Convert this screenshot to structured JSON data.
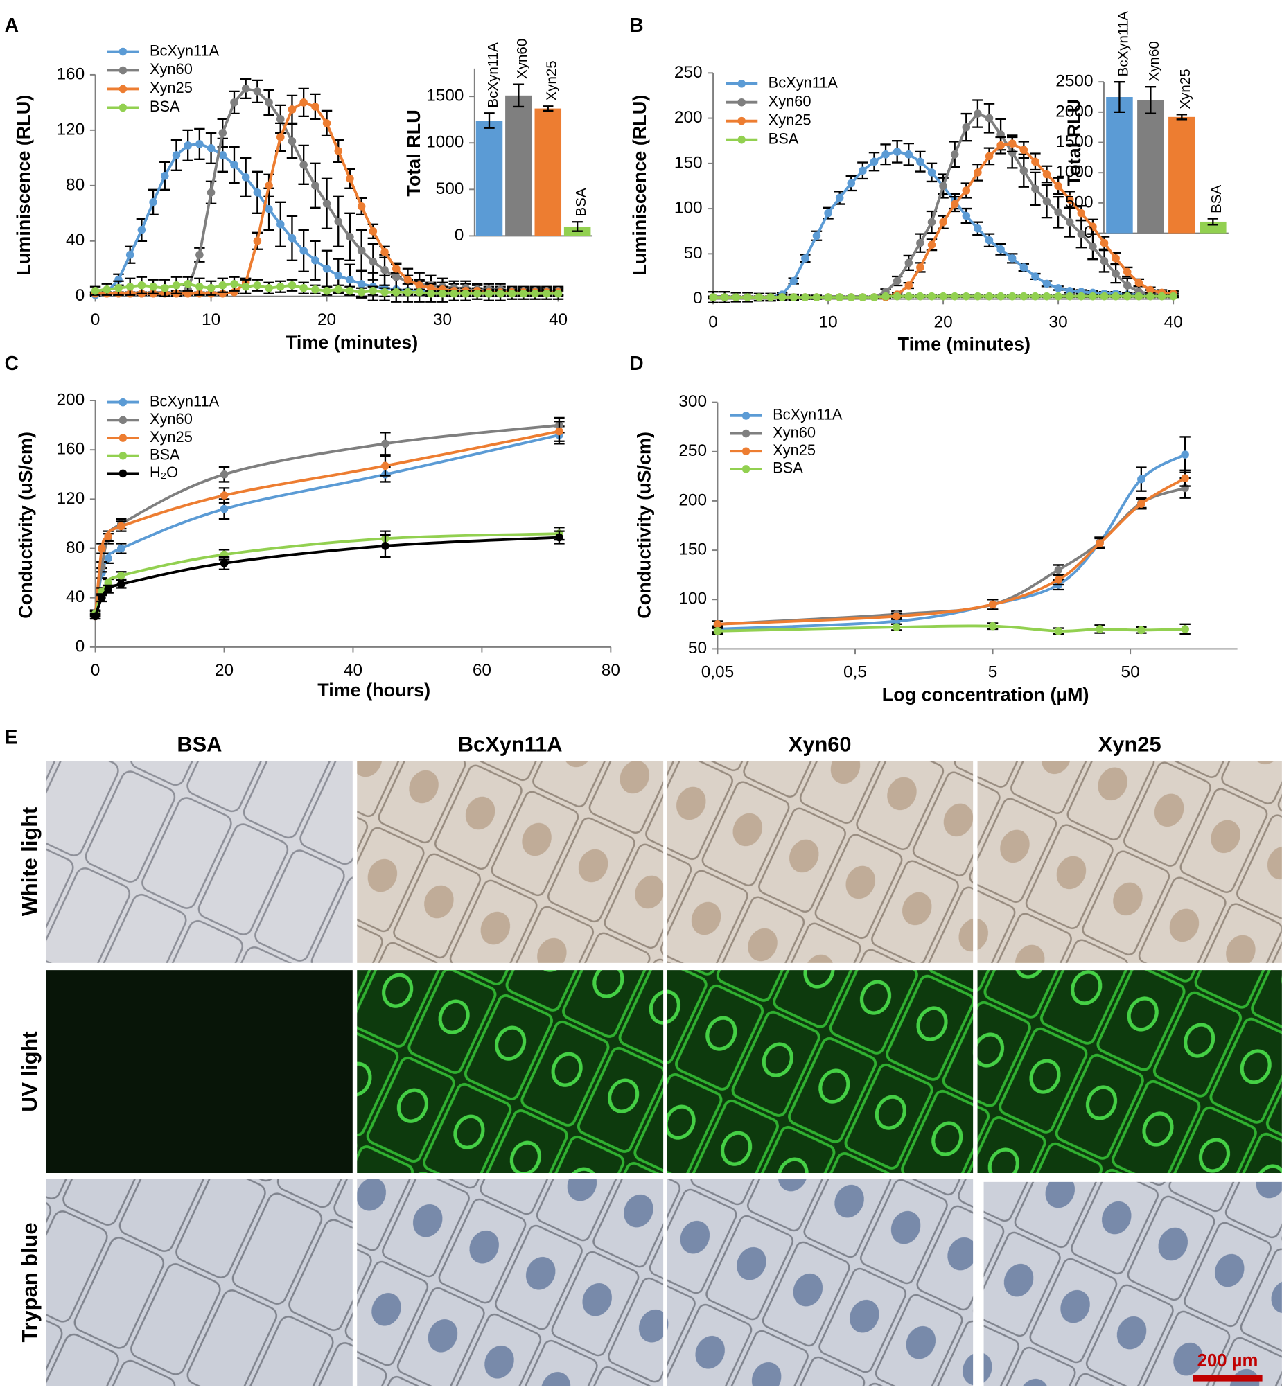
{
  "chart_data": [
    {
      "type": "line",
      "panel": "A",
      "xlabel": "Time (minutes)",
      "ylabel": "Luminiscence (RLU)",
      "x": [
        0,
        1,
        2,
        3,
        4,
        5,
        6,
        7,
        8,
        9,
        10,
        11,
        12,
        13,
        14,
        15,
        16,
        17,
        18,
        19,
        20,
        21,
        22,
        23,
        24,
        25,
        26,
        27,
        28,
        29,
        30,
        31,
        32,
        33,
        34,
        35,
        36,
        37,
        38,
        39,
        40
      ],
      "xlim": [
        0,
        40
      ],
      "xticks": [
        0,
        10,
        20,
        30,
        40
      ],
      "ylim": [
        0,
        160
      ],
      "yticks": [
        0,
        40,
        80,
        120,
        160
      ],
      "series": [
        {
          "name": "BcXyn11A",
          "color": "#5b9bd5",
          "values": [
            1,
            3,
            12,
            30,
            48,
            68,
            87,
            102,
            109,
            110,
            107,
            102,
            95,
            86,
            75,
            63,
            52,
            42,
            33,
            26,
            20,
            15,
            12,
            9,
            7,
            6,
            5,
            4,
            4,
            3,
            3,
            3,
            3,
            3,
            2,
            2,
            2,
            2,
            2,
            2,
            2
          ],
          "errors": [
            1,
            2,
            4,
            6,
            8,
            9,
            10,
            11,
            11,
            11,
            11,
            12,
            13,
            14,
            15,
            15,
            16,
            16,
            15,
            14,
            13,
            12,
            11,
            10,
            10,
            9,
            9,
            8,
            8,
            7,
            7,
            6,
            6,
            5,
            5,
            5,
            4,
            4,
            4,
            4,
            4
          ]
        },
        {
          "name": "Xyn60",
          "color": "#7f7f7f",
          "values": [
            2,
            2,
            2,
            2,
            2,
            2,
            2,
            2,
            5,
            30,
            75,
            118,
            140,
            150,
            148,
            140,
            128,
            112,
            95,
            80,
            67,
            54,
            43,
            33,
            25,
            19,
            14,
            11,
            9,
            8,
            7,
            6,
            6,
            5,
            5,
            5,
            4,
            4,
            4,
            4,
            4
          ],
          "errors": [
            1,
            1,
            1,
            1,
            1,
            1,
            1,
            2,
            3,
            5,
            8,
            10,
            8,
            7,
            8,
            9,
            10,
            12,
            14,
            16,
            18,
            18,
            17,
            15,
            13,
            11,
            10,
            9,
            8,
            7,
            6,
            5,
            5,
            4,
            4,
            4,
            3,
            3,
            3,
            3,
            3
          ]
        },
        {
          "name": "Xyn25",
          "color": "#ed7d31",
          "values": [
            2,
            2,
            2,
            2,
            2,
            2,
            2,
            2,
            2,
            2,
            2,
            2,
            3,
            10,
            40,
            80,
            115,
            135,
            140,
            137,
            125,
            105,
            85,
            65,
            47,
            32,
            20,
            12,
            8,
            6,
            5,
            4,
            4,
            4,
            3,
            3,
            3,
            3,
            3,
            3,
            3
          ],
          "errors": [
            1,
            1,
            1,
            1,
            1,
            1,
            1,
            1,
            1,
            1,
            1,
            1,
            1,
            3,
            6,
            8,
            10,
            10,
            10,
            9,
            9,
            8,
            7,
            6,
            5,
            4,
            3,
            3,
            3,
            3,
            2,
            2,
            2,
            2,
            2,
            2,
            2,
            2,
            2,
            2,
            2
          ]
        },
        {
          "name": "BSA",
          "color": "#92d050",
          "values": [
            4,
            5,
            6,
            7,
            8,
            7,
            6,
            8,
            9,
            7,
            6,
            8,
            9,
            7,
            8,
            6,
            7,
            8,
            6,
            5,
            4,
            5,
            4,
            3,
            4,
            3,
            3,
            3,
            3,
            2,
            2,
            2,
            2,
            2,
            2,
            2,
            2,
            2,
            2,
            2,
            2
          ],
          "errors": [
            3,
            4,
            5,
            6,
            6,
            5,
            6,
            6,
            5,
            6,
            5,
            5,
            5,
            5,
            4,
            4,
            4,
            4,
            4,
            3,
            3,
            3,
            3,
            3,
            3,
            3,
            2,
            2,
            2,
            2,
            2,
            2,
            2,
            2,
            2,
            2,
            2,
            2,
            2,
            2,
            2
          ]
        }
      ]
    },
    {
      "type": "bar",
      "ylabel": "Total RLU",
      "categories": [
        "BcXyn11A",
        "Xyn60",
        "Xyn25",
        "BSA"
      ],
      "values": [
        1240,
        1510,
        1370,
        100
      ],
      "errors": [
        80,
        120,
        25,
        50
      ],
      "colors": [
        "#5b9bd5",
        "#7f7f7f",
        "#ed7d31",
        "#92d050"
      ],
      "ylim": [
        0,
        1800
      ],
      "yticks": [
        0,
        500,
        1000,
        1500
      ]
    },
    {
      "type": "line",
      "panel": "B",
      "xlabel": "Time (minutes)",
      "ylabel": "Luminiscence (RLU)",
      "x": [
        0,
        1,
        2,
        3,
        4,
        5,
        6,
        7,
        8,
        9,
        10,
        11,
        12,
        13,
        14,
        15,
        16,
        17,
        18,
        19,
        20,
        21,
        22,
        23,
        24,
        25,
        26,
        27,
        28,
        29,
        30,
        31,
        32,
        33,
        34,
        35,
        36,
        37,
        38,
        39,
        40
      ],
      "xlim": [
        0,
        40
      ],
      "xticks": [
        0,
        10,
        20,
        30,
        40
      ],
      "ylim": [
        0,
        250
      ],
      "yticks": [
        0,
        50,
        100,
        150,
        200,
        250
      ],
      "series": [
        {
          "name": "BcXyn11A",
          "color": "#5b9bd5",
          "values": [
            2,
            2,
            2,
            2,
            2,
            2,
            5,
            20,
            45,
            70,
            95,
            112,
            128,
            142,
            152,
            160,
            163,
            160,
            152,
            140,
            125,
            108,
            92,
            78,
            65,
            55,
            45,
            35,
            25,
            17,
            12,
            9,
            8,
            7,
            6,
            6,
            5,
            5,
            4,
            4,
            4
          ],
          "errors": [
            1,
            1,
            1,
            1,
            1,
            1,
            2,
            3,
            4,
            5,
            6,
            7,
            8,
            9,
            10,
            11,
            12,
            12,
            11,
            10,
            9,
            8,
            8,
            7,
            7,
            6,
            5,
            4,
            3,
            3,
            2,
            2,
            2,
            2,
            2,
            2,
            2,
            2,
            2,
            2,
            2
          ]
        },
        {
          "name": "Xyn60",
          "color": "#7f7f7f",
          "values": [
            2,
            2,
            2,
            2,
            2,
            2,
            2,
            2,
            2,
            2,
            2,
            2,
            2,
            2,
            2,
            8,
            20,
            40,
            62,
            85,
            125,
            160,
            190,
            205,
            200,
            182,
            162,
            142,
            122,
            108,
            96,
            85,
            72,
            58,
            42,
            28,
            15,
            8,
            6,
            5,
            5
          ],
          "errors": [
            1,
            1,
            1,
            1,
            1,
            1,
            1,
            1,
            1,
            1,
            1,
            1,
            1,
            1,
            1,
            3,
            5,
            8,
            10,
            12,
            13,
            14,
            15,
            15,
            16,
            17,
            17,
            18,
            18,
            18,
            17,
            16,
            15,
            14,
            12,
            10,
            8,
            6,
            4,
            3,
            3
          ]
        },
        {
          "name": "Xyn25",
          "color": "#ed7d31",
          "values": [
            2,
            2,
            2,
            2,
            2,
            2,
            2,
            2,
            2,
            2,
            2,
            2,
            2,
            2,
            2,
            2,
            5,
            15,
            35,
            60,
            85,
            105,
            120,
            140,
            158,
            170,
            172,
            165,
            152,
            138,
            125,
            110,
            95,
            80,
            62,
            45,
            30,
            18,
            10,
            7,
            6
          ],
          "errors": [
            1,
            1,
            1,
            1,
            1,
            1,
            1,
            1,
            1,
            1,
            1,
            1,
            1,
            1,
            1,
            1,
            2,
            3,
            5,
            6,
            7,
            8,
            8,
            9,
            9,
            9,
            9,
            9,
            9,
            9,
            9,
            9,
            8,
            8,
            7,
            6,
            5,
            4,
            3,
            3,
            3
          ]
        },
        {
          "name": "BSA",
          "color": "#92d050",
          "values": [
            2,
            2,
            2,
            2,
            2,
            2,
            2,
            2,
            2,
            2,
            2,
            2,
            2,
            2,
            2,
            3,
            3,
            3,
            3,
            3,
            3,
            3,
            3,
            3,
            3,
            3,
            3,
            3,
            3,
            3,
            3,
            3,
            3,
            3,
            3,
            3,
            3,
            3,
            3,
            3,
            3
          ],
          "errors": [
            6,
            6,
            5,
            5,
            4,
            4,
            3,
            3,
            2,
            2,
            1,
            1,
            1,
            1,
            1,
            1,
            1,
            1,
            1,
            1,
            1,
            1,
            1,
            1,
            1,
            1,
            1,
            1,
            1,
            1,
            1,
            1,
            1,
            1,
            1,
            1,
            1,
            1,
            1,
            1,
            1
          ]
        }
      ]
    },
    {
      "type": "bar",
      "ylabel": "Total RLU",
      "categories": [
        "BcXyn11A",
        "Xyn60",
        "Xyn25",
        "BSA"
      ],
      "values": [
        2250,
        2200,
        1920,
        190
      ],
      "errors": [
        250,
        220,
        40,
        50
      ],
      "colors": [
        "#5b9bd5",
        "#7f7f7f",
        "#ed7d31",
        "#92d050"
      ],
      "ylim": [
        0,
        2500
      ],
      "yticks": [
        0,
        500,
        1000,
        1500,
        2000,
        2500
      ]
    },
    {
      "type": "line",
      "panel": "C",
      "xlabel": "Time (hours)",
      "ylabel": "Conductivity (uS/cm)",
      "smooth": true,
      "x": [
        0,
        1,
        2,
        4,
        20,
        45,
        72
      ],
      "xlim": [
        0,
        80
      ],
      "xticks": [
        0,
        20,
        40,
        60,
        80
      ],
      "ylim": [
        0,
        200
      ],
      "yticks": [
        0,
        40,
        80,
        120,
        160,
        200
      ],
      "series": [
        {
          "name": "BcXyn11A",
          "color": "#5b9bd5",
          "values": [
            27,
            60,
            72,
            80,
            112,
            140,
            172
          ],
          "errors": [
            2,
            4,
            4,
            4,
            8,
            6,
            7
          ]
        },
        {
          "name": "Xyn60",
          "color": "#7f7f7f",
          "values": [
            28,
            65,
            88,
            100,
            140,
            165,
            180
          ],
          "errors": [
            2,
            4,
            4,
            4,
            6,
            9,
            6
          ]
        },
        {
          "name": "Xyn25",
          "color": "#ed7d31",
          "values": [
            25,
            80,
            90,
            98,
            123,
            147,
            175
          ],
          "errors": [
            2,
            4,
            4,
            4,
            6,
            8,
            8
          ]
        },
        {
          "name": "BSA",
          "color": "#92d050",
          "values": [
            27,
            45,
            52,
            58,
            75,
            88,
            92
          ],
          "errors": [
            2,
            3,
            3,
            3,
            4,
            6,
            5
          ]
        },
        {
          "name": "H₂O",
          "color": "#000000",
          "values": [
            25,
            40,
            47,
            51,
            68,
            82,
            89
          ],
          "errors": [
            2,
            3,
            3,
            3,
            5,
            9,
            5
          ]
        }
      ]
    },
    {
      "type": "line",
      "panel": "D",
      "xlabel": "Log concentration (µM)",
      "ylabel": "Conductivity (uS/cm)",
      "smooth": true,
      "xlog": true,
      "x": [
        0.05,
        1,
        5,
        15,
        30,
        60,
        125
      ],
      "xlim": [
        0.05,
        300
      ],
      "xticks": [
        {
          "value": 0.05,
          "label": "0,05"
        },
        {
          "value": 0.5,
          "label": "0,5"
        },
        5,
        50
      ],
      "ylim": [
        50,
        300
      ],
      "yticks": [
        50,
        100,
        150,
        200,
        250,
        300
      ],
      "series": [
        {
          "name": "BcXyn11A",
          "color": "#5b9bd5",
          "values": [
            70,
            78,
            95,
            115,
            158,
            222,
            247
          ],
          "errors": [
            3,
            3,
            5,
            5,
            5,
            12,
            18
          ]
        },
        {
          "name": "Xyn60",
          "color": "#7f7f7f",
          "values": [
            75,
            85,
            95,
            130,
            158,
            198,
            213
          ],
          "errors": [
            3,
            3,
            5,
            5,
            5,
            5,
            10
          ]
        },
        {
          "name": "Xyn25",
          "color": "#ed7d31",
          "values": [
            75,
            83,
            95,
            120,
            157,
            197,
            223
          ],
          "errors": [
            3,
            3,
            5,
            5,
            5,
            5,
            8
          ]
        },
        {
          "name": "BSA",
          "color": "#92d050",
          "values": [
            68,
            72,
            73,
            68,
            70,
            69,
            70
          ],
          "errors": [
            3,
            3,
            3,
            3,
            4,
            3,
            5
          ]
        }
      ]
    }
  ],
  "panel_e": {
    "panel": "E",
    "columns": [
      "BSA",
      "BcXyn11A",
      "Xyn60",
      "Xyn25"
    ],
    "rows": [
      "White light",
      "UV light",
      "Trypan blue"
    ],
    "scale_bar": "200 µm"
  }
}
